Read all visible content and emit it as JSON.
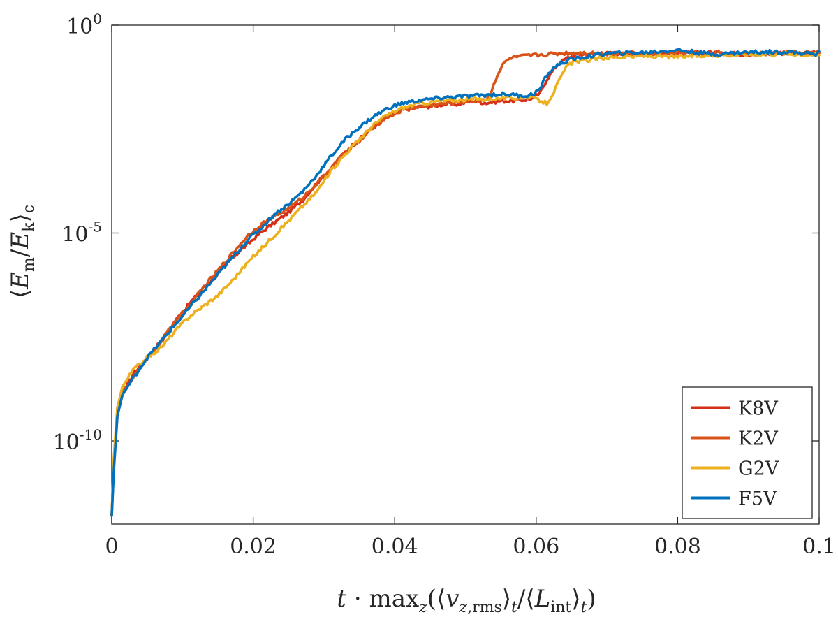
{
  "chart_data": {
    "type": "line",
    "title": "",
    "xlabel": "t · max_z(⟨v_z,rms⟩_t / ⟨L_int⟩_t)",
    "ylabel": "⟨E_m / E_k⟩_c",
    "xlim": [
      0,
      0.1
    ],
    "ylim_log10": [
      -12,
      0
    ],
    "yscale": "log",
    "x_ticks": [
      {
        "value": 0,
        "label": "0"
      },
      {
        "value": 0.02,
        "label": "0.02"
      },
      {
        "value": 0.04,
        "label": "0.04"
      },
      {
        "value": 0.06,
        "label": "0.06"
      },
      {
        "value": 0.08,
        "label": "0.08"
      },
      {
        "value": 0.1,
        "label": "0.1"
      }
    ],
    "y_ticks": [
      {
        "exp": 0,
        "base": "10",
        "power": "0"
      },
      {
        "exp": -5,
        "base": "10",
        "power": "-5"
      },
      {
        "exp": -10,
        "base": "10",
        "power": "-10"
      }
    ],
    "legend_position": "bottom-right",
    "series": [
      {
        "name": "K8V",
        "color": "#D62D17",
        "x": [
          0,
          0.0003,
          0.0008,
          0.0015,
          0.003,
          0.005,
          0.007,
          0.009,
          0.011,
          0.013,
          0.015,
          0.017,
          0.019,
          0.021,
          0.023,
          0.025,
          0.027,
          0.029,
          0.031,
          0.033,
          0.035,
          0.037,
          0.039,
          0.041,
          0.043,
          0.045,
          0.047,
          0.049,
          0.051,
          0.053,
          0.055,
          0.057,
          0.059,
          0.0605,
          0.0615,
          0.063,
          0.0645,
          0.066,
          0.068,
          0.07,
          0.075,
          0.08,
          0.085,
          0.09,
          0.095,
          0.1
        ],
        "log10_y": [
          -11.8,
          -10.5,
          -9.4,
          -8.9,
          -8.4,
          -8.0,
          -7.6,
          -7.1,
          -6.7,
          -6.3,
          -6.0,
          -5.6,
          -5.3,
          -5.0,
          -4.75,
          -4.5,
          -4.2,
          -3.8,
          -3.45,
          -3.05,
          -2.75,
          -2.45,
          -2.2,
          -2.05,
          -1.97,
          -1.95,
          -1.9,
          -1.9,
          -1.82,
          -1.87,
          -1.82,
          -1.82,
          -1.78,
          -1.65,
          -1.3,
          -0.95,
          -0.78,
          -0.7,
          -0.7,
          -0.68,
          -0.67,
          -0.69,
          -0.65,
          -0.7,
          -0.67,
          -0.67
        ]
      },
      {
        "name": "K2V",
        "color": "#D95319",
        "x": [
          0,
          0.0003,
          0.0008,
          0.0015,
          0.003,
          0.005,
          0.007,
          0.009,
          0.011,
          0.013,
          0.015,
          0.017,
          0.019,
          0.021,
          0.023,
          0.025,
          0.027,
          0.029,
          0.031,
          0.033,
          0.035,
          0.037,
          0.039,
          0.041,
          0.043,
          0.045,
          0.047,
          0.049,
          0.051,
          0.053,
          0.0535,
          0.0545,
          0.0555,
          0.0565,
          0.058,
          0.06,
          0.063,
          0.066,
          0.07,
          0.075,
          0.08,
          0.085,
          0.09,
          0.095,
          0.1
        ],
        "log10_y": [
          -11.8,
          -10.5,
          -9.2,
          -8.8,
          -8.5,
          -8.0,
          -7.6,
          -7.1,
          -6.75,
          -6.3,
          -5.9,
          -5.5,
          -5.1,
          -4.8,
          -4.6,
          -4.4,
          -4.15,
          -3.8,
          -3.45,
          -3.05,
          -2.8,
          -2.45,
          -2.2,
          -2.05,
          -1.97,
          -1.93,
          -1.88,
          -1.85,
          -1.82,
          -1.78,
          -1.65,
          -1.2,
          -0.9,
          -0.78,
          -0.75,
          -0.72,
          -0.68,
          -0.66,
          -0.68,
          -0.7,
          -0.66,
          -0.68,
          -0.7,
          -0.66,
          -0.67
        ]
      },
      {
        "name": "G2V",
        "color": "#EDB120",
        "x": [
          0,
          0.0003,
          0.0008,
          0.0015,
          0.003,
          0.005,
          0.007,
          0.009,
          0.011,
          0.013,
          0.015,
          0.017,
          0.019,
          0.021,
          0.023,
          0.025,
          0.027,
          0.029,
          0.031,
          0.033,
          0.035,
          0.037,
          0.039,
          0.041,
          0.043,
          0.045,
          0.047,
          0.049,
          0.051,
          0.053,
          0.055,
          0.057,
          0.059,
          0.0615,
          0.0625,
          0.0635,
          0.0645,
          0.0655,
          0.067,
          0.07,
          0.075,
          0.08,
          0.085,
          0.09,
          0.095,
          0.1
        ],
        "log10_y": [
          -11.8,
          -10.4,
          -9.2,
          -8.7,
          -8.3,
          -8.0,
          -7.75,
          -7.35,
          -7.0,
          -6.75,
          -6.5,
          -6.15,
          -5.75,
          -5.4,
          -5.05,
          -4.7,
          -4.35,
          -4.0,
          -3.5,
          -3.1,
          -2.75,
          -2.4,
          -2.15,
          -2.0,
          -1.9,
          -1.85,
          -1.82,
          -1.8,
          -1.78,
          -1.78,
          -1.76,
          -1.75,
          -1.72,
          -1.88,
          -1.6,
          -1.25,
          -0.95,
          -0.88,
          -0.85,
          -0.78,
          -0.74,
          -0.76,
          -0.72,
          -0.7,
          -0.68,
          -0.72
        ]
      },
      {
        "name": "F5V",
        "color": "#0072BD",
        "x": [
          0,
          0.0003,
          0.0008,
          0.0015,
          0.003,
          0.005,
          0.007,
          0.009,
          0.011,
          0.013,
          0.015,
          0.017,
          0.019,
          0.021,
          0.023,
          0.025,
          0.027,
          0.029,
          0.031,
          0.033,
          0.035,
          0.037,
          0.039,
          0.041,
          0.043,
          0.045,
          0.047,
          0.049,
          0.051,
          0.053,
          0.055,
          0.057,
          0.059,
          0.0605,
          0.0615,
          0.063,
          0.065,
          0.067,
          0.07,
          0.075,
          0.08,
          0.085,
          0.09,
          0.095,
          0.1
        ],
        "log10_y": [
          -11.8,
          -10.7,
          -9.4,
          -8.9,
          -8.5,
          -8.0,
          -7.6,
          -7.2,
          -6.8,
          -6.4,
          -6.0,
          -5.6,
          -5.2,
          -4.9,
          -4.55,
          -4.3,
          -4.0,
          -3.6,
          -3.15,
          -2.75,
          -2.45,
          -2.2,
          -2.0,
          -1.88,
          -1.82,
          -1.78,
          -1.74,
          -1.72,
          -1.7,
          -1.68,
          -1.66,
          -1.68,
          -1.7,
          -1.55,
          -1.2,
          -0.95,
          -0.82,
          -0.76,
          -0.68,
          -0.66,
          -0.6,
          -0.7,
          -0.65,
          -0.64,
          -0.7,
          -0.63
        ]
      }
    ]
  }
}
